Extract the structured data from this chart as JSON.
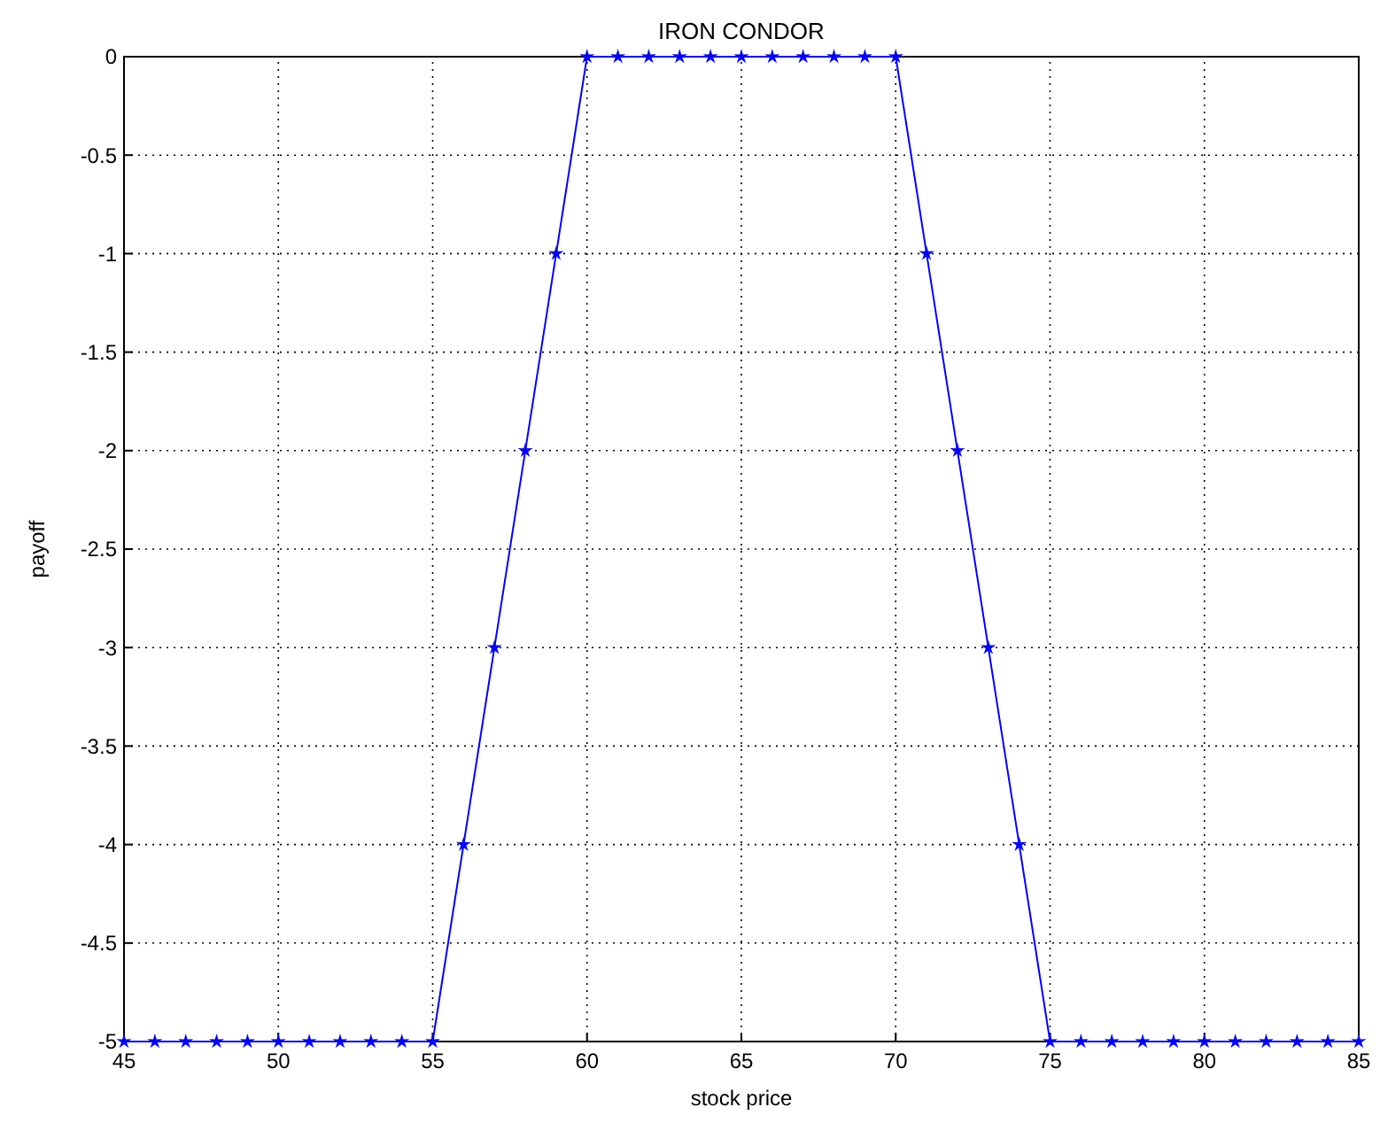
{
  "chart_data": {
    "type": "line",
    "title": "IRON CONDOR",
    "xlabel": "stock price",
    "ylabel": "payoff",
    "x": [
      45,
      46,
      47,
      48,
      49,
      50,
      51,
      52,
      53,
      54,
      55,
      56,
      57,
      58,
      59,
      60,
      61,
      62,
      63,
      64,
      65,
      66,
      67,
      68,
      69,
      70,
      71,
      72,
      73,
      74,
      75,
      76,
      77,
      78,
      79,
      80,
      81,
      82,
      83,
      84,
      85
    ],
    "series": [
      {
        "color": "#0000ff",
        "values": [
          -5,
          -5,
          -5,
          -5,
          -5,
          -5,
          -5,
          -5,
          -5,
          -5,
          -5,
          -4,
          -3,
          -2,
          -1,
          0,
          0,
          0,
          0,
          0,
          0,
          0,
          0,
          0,
          0,
          0,
          -1,
          -2,
          -3,
          -4,
          -5,
          -5,
          -5,
          -5,
          -5,
          -5,
          -5,
          -5,
          -5,
          -5,
          -5
        ]
      }
    ],
    "xlim": [
      45,
      85
    ],
    "xticks": [
      45,
      50,
      55,
      60,
      65,
      70,
      75,
      80,
      85
    ],
    "ylim": [
      -5,
      0
    ],
    "yticks": [
      -5,
      -4.5,
      -4,
      -3.5,
      -3,
      -2.5,
      -2,
      -1.5,
      -1,
      -0.5,
      0
    ],
    "grid": true,
    "marker": "star",
    "line_style": "solid"
  }
}
